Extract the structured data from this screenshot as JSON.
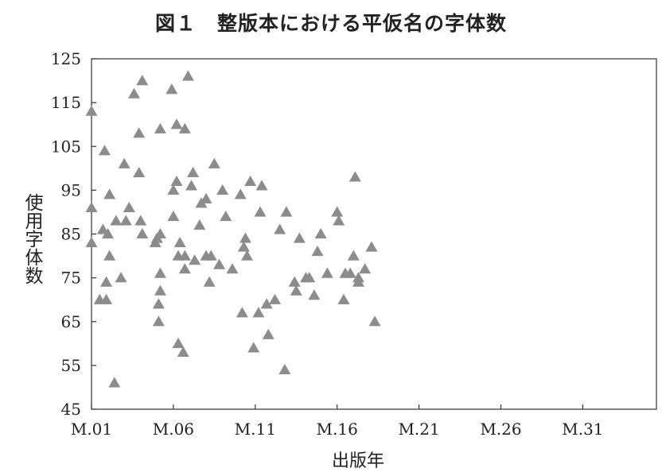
{
  "chart_data": {
    "type": "scatter",
    "title": "図１　整版本における平仮名の字体数",
    "xlabel": "出版年",
    "ylabel": "使用字体数",
    "x_ticks": [
      "M.01",
      "M.06",
      "M.11",
      "M.16",
      "M.21",
      "M.31",
      "M.26"
    ],
    "x_tick_order": [
      "M.01",
      "M.06",
      "M.11",
      "M.16",
      "M.21",
      "M.26",
      "M.31"
    ],
    "xlim": [
      1,
      35.5
    ],
    "ylim": [
      45,
      125
    ],
    "y_ticks": [
      45,
      55,
      65,
      75,
      85,
      95,
      105,
      115,
      125
    ],
    "grid": false,
    "marker": "triangle",
    "marker_color": "#8c8c8c",
    "points": [
      [
        1.0,
        113
      ],
      [
        1.0,
        91
      ],
      [
        1.0,
        83
      ],
      [
        1.5,
        70
      ],
      [
        1.7,
        86
      ],
      [
        1.8,
        104
      ],
      [
        1.9,
        74
      ],
      [
        1.9,
        70
      ],
      [
        2.0,
        85
      ],
      [
        2.1,
        94
      ],
      [
        2.1,
        80
      ],
      [
        2.4,
        51
      ],
      [
        2.5,
        88
      ],
      [
        2.8,
        75
      ],
      [
        3.0,
        101
      ],
      [
        3.1,
        88
      ],
      [
        3.3,
        91
      ],
      [
        3.6,
        117
      ],
      [
        3.9,
        108
      ],
      [
        3.9,
        99
      ],
      [
        4.0,
        88
      ],
      [
        4.1,
        120
      ],
      [
        4.1,
        85
      ],
      [
        4.9,
        83
      ],
      [
        5.0,
        84
      ],
      [
        5.1,
        69
      ],
      [
        5.1,
        65
      ],
      [
        5.2,
        109
      ],
      [
        5.2,
        85
      ],
      [
        5.2,
        76
      ],
      [
        5.2,
        72
      ],
      [
        5.9,
        118
      ],
      [
        6.0,
        89
      ],
      [
        6.0,
        95
      ],
      [
        6.2,
        97
      ],
      [
        6.2,
        110
      ],
      [
        6.3,
        80
      ],
      [
        6.3,
        60
      ],
      [
        6.4,
        83
      ],
      [
        6.6,
        58
      ],
      [
        6.7,
        109
      ],
      [
        6.7,
        80
      ],
      [
        6.7,
        77
      ],
      [
        6.9,
        121
      ],
      [
        7.1,
        96
      ],
      [
        7.2,
        99
      ],
      [
        7.3,
        79
      ],
      [
        7.6,
        87
      ],
      [
        7.7,
        92
      ],
      [
        8.0,
        93
      ],
      [
        8.0,
        80
      ],
      [
        8.2,
        74
      ],
      [
        8.3,
        80
      ],
      [
        8.5,
        101
      ],
      [
        8.8,
        78
      ],
      [
        9.0,
        95
      ],
      [
        9.2,
        89
      ],
      [
        9.6,
        77
      ],
      [
        10.1,
        94
      ],
      [
        10.2,
        67
      ],
      [
        10.3,
        82
      ],
      [
        10.4,
        84
      ],
      [
        10.5,
        80
      ],
      [
        10.7,
        97
      ],
      [
        10.9,
        59
      ],
      [
        11.2,
        67
      ],
      [
        11.3,
        90
      ],
      [
        11.4,
        96
      ],
      [
        11.7,
        69
      ],
      [
        11.8,
        62
      ],
      [
        12.2,
        70
      ],
      [
        12.5,
        86
      ],
      [
        12.8,
        54
      ],
      [
        12.9,
        90
      ],
      [
        13.4,
        74
      ],
      [
        13.5,
        72
      ],
      [
        13.7,
        84
      ],
      [
        14.1,
        75
      ],
      [
        14.3,
        75
      ],
      [
        14.6,
        71
      ],
      [
        14.8,
        81
      ],
      [
        15.0,
        85
      ],
      [
        15.4,
        76
      ],
      [
        16.0,
        90
      ],
      [
        16.1,
        88
      ],
      [
        16.4,
        70
      ],
      [
        16.5,
        76
      ],
      [
        16.8,
        76
      ],
      [
        17.0,
        80
      ],
      [
        17.1,
        98
      ],
      [
        17.3,
        74
      ],
      [
        17.3,
        75
      ],
      [
        17.7,
        77
      ],
      [
        18.1,
        82
      ],
      [
        18.3,
        65
      ]
    ]
  }
}
